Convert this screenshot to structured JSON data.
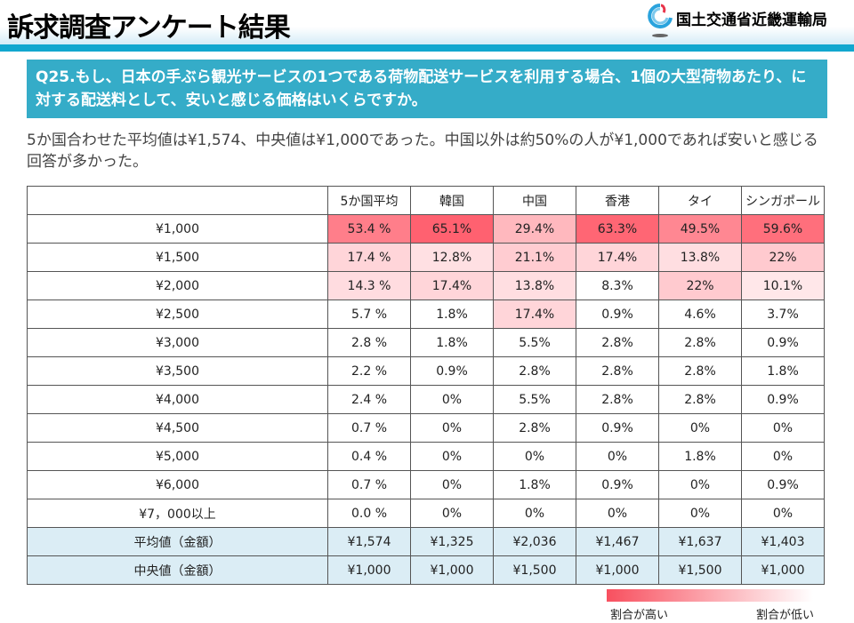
{
  "header": {
    "title": "訴求調査アンケート結果",
    "org": "国土交通省近畿運輸局"
  },
  "question": "Q25.もし、日本の手ぶら観光サービスの1つである荷物配送サービスを利用する場合、1個の大型荷物あたり、に対する配送料として、安いと感じる価格はいくらですか。",
  "summary": "5か国合わせた平均値は¥1,574、中央値は¥1,000であった。中国以外は約50%の人が¥1,000であれば安いと感じる回答が多かった。",
  "table": {
    "columns": [
      "5か国平均",
      "韓国",
      "中国",
      "香港",
      "タイ",
      "シンガポール"
    ],
    "rows": [
      {
        "label": "¥1,000",
        "cells": [
          "53.4 %",
          "65.1%",
          "29.4%",
          "63.3%",
          "49.5%",
          "59.6%"
        ]
      },
      {
        "label": "¥1,500",
        "cells": [
          "17.4 %",
          "12.8%",
          "21.1%",
          "17.4%",
          "13.8%",
          "22%"
        ]
      },
      {
        "label": "¥2,000",
        "cells": [
          "14.3 %",
          "17.4%",
          "13.8%",
          "8.3%",
          "22%",
          "10.1%"
        ]
      },
      {
        "label": "¥2,500",
        "cells": [
          "5.7 %",
          "1.8%",
          "17.4%",
          "0.9%",
          "4.6%",
          "3.7%"
        ]
      },
      {
        "label": "¥3,000",
        "cells": [
          "2.8 %",
          "1.8%",
          "5.5%",
          "2.8%",
          "2.8%",
          "0.9%"
        ]
      },
      {
        "label": "¥3,500",
        "cells": [
          "2.2 %",
          "0.9%",
          "2.8%",
          "2.8%",
          "2.8%",
          "1.8%"
        ]
      },
      {
        "label": "¥4,000",
        "cells": [
          "2.4 %",
          "0%",
          "5.5%",
          "2.8%",
          "2.8%",
          "0.9%"
        ]
      },
      {
        "label": "¥4,500",
        "cells": [
          "0.7 %",
          "0%",
          "2.8%",
          "0.9%",
          "0%",
          "0%"
        ]
      },
      {
        "label": "¥5,000",
        "cells": [
          "0.4 %",
          "0%",
          "0%",
          "0%",
          "1.8%",
          "0%"
        ]
      },
      {
        "label": "¥6,000",
        "cells": [
          "0.7 %",
          "0%",
          "1.8%",
          "0.9%",
          "0%",
          "0.9%"
        ]
      },
      {
        "label": "¥7，000以上",
        "cells": [
          "0.0 %",
          "0%",
          "0%",
          "0%",
          "0%",
          "0%"
        ]
      }
    ],
    "stats": [
      {
        "label": "平均値（金額）",
        "cells": [
          "¥1,574",
          "¥1,325",
          "¥2,036",
          "¥1,467",
          "¥1,637",
          "¥1,403"
        ]
      },
      {
        "label": "中央値（金額）",
        "cells": [
          "¥1,000",
          "¥1,000",
          "¥1,500",
          "¥1,000",
          "¥1,500",
          "¥1,000"
        ]
      }
    ]
  },
  "legend": {
    "high": "割合が高い",
    "low": "割合が低い",
    "high_color": "#f8505f",
    "low_color": "#ffffff"
  }
}
